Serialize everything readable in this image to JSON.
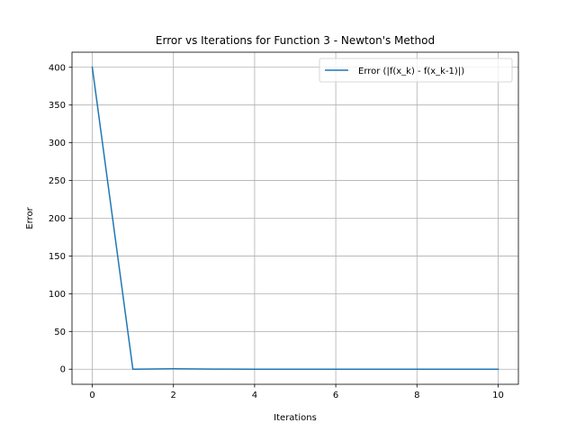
{
  "chart_data": {
    "type": "line",
    "title": "Error vs Iterations for Function 3 - Newton's Method",
    "xlabel": "Iterations",
    "ylabel": "Error",
    "xlim": [
      -0.5,
      10.5
    ],
    "ylim": [
      -20,
      420
    ],
    "xticks": [
      0,
      2,
      4,
      6,
      8,
      10
    ],
    "yticks": [
      0,
      50,
      100,
      150,
      200,
      250,
      300,
      350,
      400
    ],
    "xtick_labels": [
      "0",
      "2",
      "4",
      "6",
      "8",
      "10"
    ],
    "ytick_labels": [
      "0",
      "50",
      "100",
      "150",
      "200",
      "250",
      "300",
      "350",
      "400"
    ],
    "grid": true,
    "legend_position": "top-right",
    "colors": {
      "series": "#1f77b4",
      "grid": "#b0b0b0",
      "axes": "#000000"
    },
    "series": [
      {
        "name": "Error (|f(x_k) - f(x_k-1)|)",
        "x": [
          0,
          1,
          2,
          3,
          4,
          5,
          6,
          7,
          8,
          9,
          10
        ],
        "values": [
          400,
          0,
          0.6,
          0.1,
          0.05,
          0.02,
          0.01,
          0.01,
          0.005,
          0.003,
          0.002
        ]
      }
    ]
  }
}
